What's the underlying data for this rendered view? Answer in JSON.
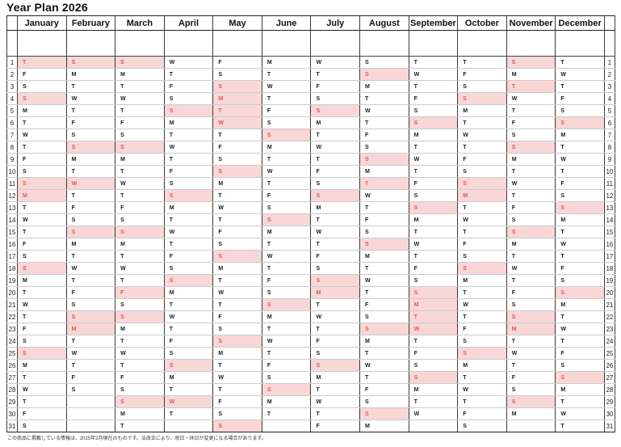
{
  "title": "Year Plan 2026",
  "footnote": "この商品に掲載している情報は、2025年2月現在のものです。法改正により、祝日・休日が変更になる場合があります。",
  "colors": {
    "highlight_bg": "#f9d7d7",
    "highlight_text": "#d65c5c"
  },
  "row_numbers": [
    1,
    2,
    3,
    4,
    5,
    6,
    7,
    8,
    9,
    10,
    11,
    12,
    13,
    14,
    15,
    16,
    17,
    18,
    19,
    20,
    21,
    22,
    23,
    24,
    25,
    26,
    27,
    28,
    29,
    30,
    31
  ],
  "months": [
    {
      "label": "January",
      "letters": [
        "T",
        "F",
        "S",
        "S",
        "M",
        "T",
        "W",
        "T",
        "F",
        "S",
        "S",
        "M",
        "T",
        "W",
        "T",
        "F",
        "S",
        "S",
        "M",
        "T",
        "W",
        "T",
        "F",
        "S",
        "S",
        "M",
        "T",
        "W",
        "T",
        "F",
        "S"
      ],
      "pink": [
        1,
        4,
        11,
        12,
        18,
        25
      ]
    },
    {
      "label": "February",
      "letters": [
        "S",
        "M",
        "T",
        "W",
        "T",
        "F",
        "S",
        "S",
        "M",
        "T",
        "W",
        "T",
        "F",
        "S",
        "S",
        "M",
        "T",
        "W",
        "T",
        "F",
        "S",
        "S",
        "M",
        "T",
        "W",
        "T",
        "F",
        "S",
        "",
        "",
        ""
      ],
      "pink": [
        1,
        8,
        11,
        15,
        22,
        23
      ]
    },
    {
      "label": "March",
      "letters": [
        "S",
        "M",
        "T",
        "W",
        "T",
        "F",
        "S",
        "S",
        "M",
        "T",
        "W",
        "T",
        "F",
        "S",
        "S",
        "M",
        "T",
        "W",
        "T",
        "F",
        "S",
        "S",
        "M",
        "T",
        "W",
        "T",
        "F",
        "S",
        "S",
        "M",
        "T"
      ],
      "pink": [
        1,
        8,
        15,
        20,
        22,
        29
      ]
    },
    {
      "label": "April",
      "letters": [
        "W",
        "T",
        "F",
        "S",
        "S",
        "M",
        "T",
        "W",
        "T",
        "F",
        "S",
        "S",
        "M",
        "T",
        "W",
        "T",
        "F",
        "S",
        "S",
        "M",
        "T",
        "W",
        "T",
        "F",
        "S",
        "S",
        "M",
        "T",
        "W",
        "T",
        ""
      ],
      "pink": [
        5,
        12,
        19,
        26,
        29
      ]
    },
    {
      "label": "May",
      "letters": [
        "F",
        "S",
        "S",
        "M",
        "T",
        "W",
        "T",
        "F",
        "S",
        "S",
        "M",
        "T",
        "W",
        "T",
        "F",
        "S",
        "S",
        "M",
        "T",
        "W",
        "T",
        "F",
        "S",
        "S",
        "M",
        "T",
        "W",
        "T",
        "F",
        "S",
        "S"
      ],
      "pink": [
        3,
        4,
        5,
        6,
        10,
        17,
        24,
        31
      ]
    },
    {
      "label": "June",
      "letters": [
        "M",
        "T",
        "W",
        "T",
        "F",
        "S",
        "S",
        "M",
        "T",
        "W",
        "T",
        "F",
        "S",
        "S",
        "M",
        "T",
        "W",
        "T",
        "F",
        "S",
        "S",
        "M",
        "T",
        "W",
        "T",
        "F",
        "S",
        "S",
        "M",
        "T",
        ""
      ],
      "pink": [
        7,
        14,
        21,
        28
      ]
    },
    {
      "label": "July",
      "letters": [
        "W",
        "T",
        "F",
        "S",
        "S",
        "M",
        "T",
        "W",
        "T",
        "F",
        "S",
        "S",
        "M",
        "T",
        "W",
        "T",
        "F",
        "S",
        "S",
        "M",
        "T",
        "W",
        "T",
        "F",
        "S",
        "S",
        "M",
        "T",
        "W",
        "T",
        "F"
      ],
      "pink": [
        5,
        12,
        19,
        20,
        26
      ]
    },
    {
      "label": "August",
      "letters": [
        "S",
        "S",
        "M",
        "T",
        "W",
        "T",
        "F",
        "S",
        "S",
        "M",
        "T",
        "W",
        "T",
        "F",
        "S",
        "S",
        "M",
        "T",
        "W",
        "T",
        "F",
        "S",
        "S",
        "M",
        "T",
        "W",
        "T",
        "F",
        "S",
        "S",
        "M"
      ],
      "pink": [
        2,
        9,
        11,
        16,
        23,
        30
      ]
    },
    {
      "label": "September",
      "letters": [
        "T",
        "W",
        "T",
        "F",
        "S",
        "S",
        "M",
        "T",
        "W",
        "T",
        "F",
        "S",
        "S",
        "M",
        "T",
        "W",
        "T",
        "F",
        "S",
        "S",
        "M",
        "T",
        "W",
        "T",
        "F",
        "S",
        "S",
        "M",
        "T",
        "W",
        ""
      ],
      "pink": [
        6,
        13,
        20,
        21,
        22,
        23,
        27
      ]
    },
    {
      "label": "October",
      "letters": [
        "T",
        "F",
        "S",
        "S",
        "M",
        "T",
        "W",
        "T",
        "F",
        "S",
        "S",
        "M",
        "T",
        "W",
        "T",
        "F",
        "S",
        "S",
        "M",
        "T",
        "W",
        "T",
        "F",
        "S",
        "S",
        "M",
        "T",
        "W",
        "T",
        "F",
        "S"
      ],
      "pink": [
        4,
        11,
        12,
        18,
        25
      ]
    },
    {
      "label": "November",
      "letters": [
        "S",
        "M",
        "T",
        "W",
        "T",
        "F",
        "S",
        "S",
        "M",
        "T",
        "W",
        "T",
        "F",
        "S",
        "S",
        "M",
        "T",
        "W",
        "T",
        "F",
        "S",
        "S",
        "M",
        "T",
        "W",
        "T",
        "F",
        "S",
        "S",
        "M",
        ""
      ],
      "pink": [
        1,
        3,
        8,
        15,
        22,
        23,
        29
      ]
    },
    {
      "label": "December",
      "letters": [
        "T",
        "W",
        "T",
        "F",
        "S",
        "S",
        "M",
        "T",
        "W",
        "T",
        "F",
        "S",
        "S",
        "M",
        "T",
        "W",
        "T",
        "F",
        "S",
        "S",
        "M",
        "T",
        "W",
        "T",
        "F",
        "S",
        "S",
        "M",
        "T",
        "W",
        "T"
      ],
      "pink": [
        6,
        13,
        20,
        27
      ]
    }
  ]
}
